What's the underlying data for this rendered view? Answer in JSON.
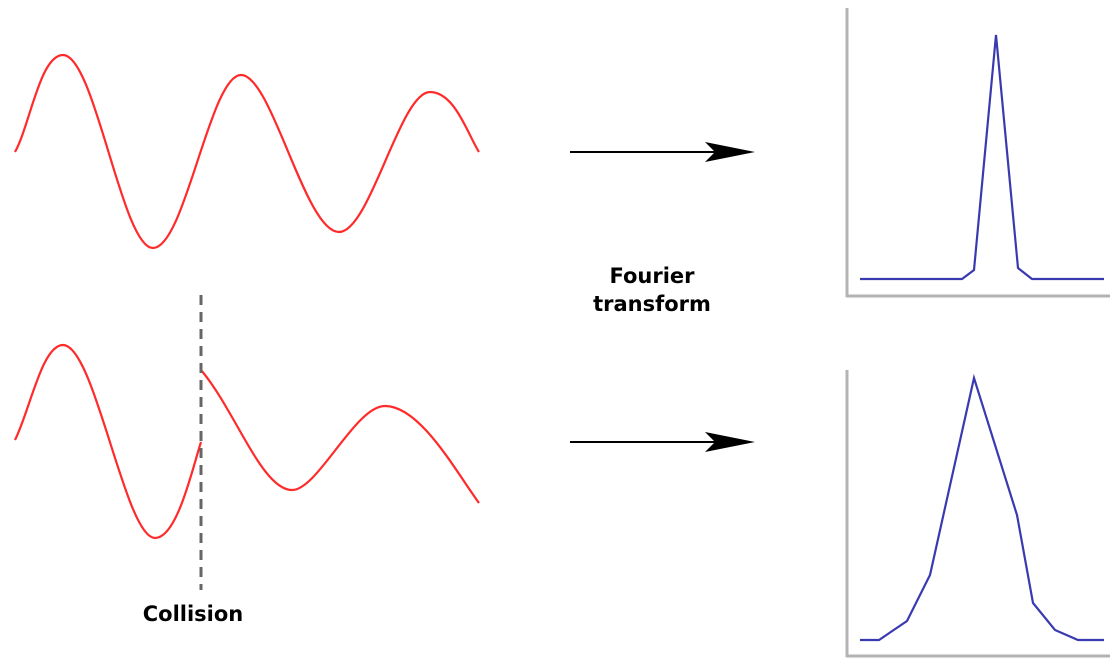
{
  "labels": {
    "transform_line1": "Fourier",
    "transform_line2": "transform",
    "collision": "Collision"
  },
  "colors": {
    "wave": "#ff2a2a",
    "spectrum": "#3a3ab0",
    "axis": "#b3b3b3",
    "arrow": "#000000",
    "collision_line": "#666666"
  }
}
